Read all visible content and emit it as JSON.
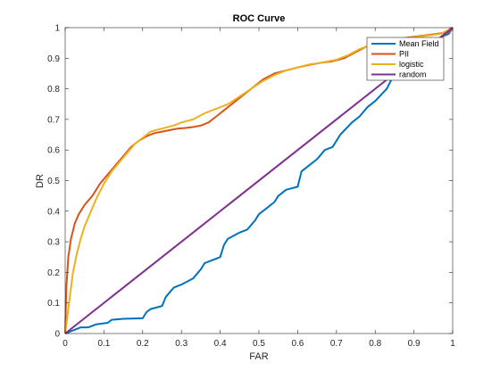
{
  "chart_data": {
    "type": "line",
    "title": "ROC Curve",
    "xlabel": "FAR",
    "ylabel": "DR",
    "xlim": [
      0,
      1
    ],
    "ylim": [
      0,
      1
    ],
    "xticks": [
      0,
      0.1,
      0.2,
      0.3,
      0.4,
      0.5,
      0.6,
      0.7,
      0.8,
      0.9,
      1
    ],
    "yticks": [
      0,
      0.1,
      0.2,
      0.3,
      0.4,
      0.5,
      0.6,
      0.7,
      0.8,
      0.9,
      1
    ],
    "xtick_labels": [
      "0",
      "0.1",
      "0.2",
      "0.3",
      "0.4",
      "0.5",
      "0.6",
      "0.7",
      "0.8",
      "0.9",
      "1"
    ],
    "ytick_labels": [
      "0",
      "0.1",
      "0.2",
      "0.3",
      "0.4",
      "0.5",
      "0.6",
      "0.7",
      "0.8",
      "0.9",
      "1"
    ],
    "grid": false,
    "legend_position": "top-right",
    "series": [
      {
        "name": "Mean Field",
        "color": "#0072BD",
        "x": [
          0,
          0.02,
          0.04,
          0.06,
          0.08,
          0.11,
          0.12,
          0.15,
          0.2,
          0.21,
          0.22,
          0.25,
          0.26,
          0.28,
          0.3,
          0.33,
          0.35,
          0.36,
          0.38,
          0.4,
          0.41,
          0.42,
          0.45,
          0.47,
          0.49,
          0.5,
          0.52,
          0.54,
          0.55,
          0.57,
          0.6,
          0.61,
          0.63,
          0.65,
          0.67,
          0.69,
          0.71,
          0.74,
          0.76,
          0.78,
          0.8,
          0.83,
          0.85,
          0.86,
          0.88,
          0.9,
          0.93,
          0.95,
          0.97,
          0.99,
          1
        ],
        "y": [
          0,
          0.01,
          0.02,
          0.02,
          0.03,
          0.035,
          0.045,
          0.048,
          0.05,
          0.07,
          0.08,
          0.09,
          0.12,
          0.15,
          0.16,
          0.18,
          0.21,
          0.23,
          0.24,
          0.25,
          0.29,
          0.31,
          0.33,
          0.34,
          0.37,
          0.39,
          0.41,
          0.43,
          0.45,
          0.47,
          0.48,
          0.53,
          0.55,
          0.57,
          0.6,
          0.61,
          0.65,
          0.69,
          0.71,
          0.74,
          0.76,
          0.8,
          0.85,
          0.86,
          0.88,
          0.91,
          0.93,
          0.95,
          0.97,
          0.98,
          1.0
        ]
      },
      {
        "name": "PII",
        "color": "#D95319",
        "x": [
          0,
          0.003,
          0.008,
          0.015,
          0.025,
          0.035,
          0.05,
          0.07,
          0.09,
          0.11,
          0.13,
          0.15,
          0.17,
          0.19,
          0.21,
          0.23,
          0.25,
          0.27,
          0.29,
          0.31,
          0.33,
          0.35,
          0.37,
          0.39,
          0.42,
          0.45,
          0.48,
          0.51,
          0.54,
          0.57,
          0.6,
          0.63,
          0.66,
          0.69,
          0.72,
          0.75,
          0.78,
          0.81,
          0.84,
          0.87,
          0.9,
          0.93,
          0.96,
          0.99,
          1
        ],
        "y": [
          0,
          0.15,
          0.25,
          0.31,
          0.36,
          0.39,
          0.42,
          0.45,
          0.49,
          0.52,
          0.55,
          0.58,
          0.61,
          0.63,
          0.645,
          0.655,
          0.66,
          0.665,
          0.67,
          0.672,
          0.675,
          0.68,
          0.69,
          0.71,
          0.74,
          0.77,
          0.8,
          0.83,
          0.85,
          0.86,
          0.87,
          0.878,
          0.885,
          0.89,
          0.9,
          0.92,
          0.94,
          0.95,
          0.96,
          0.965,
          0.97,
          0.975,
          0.98,
          0.985,
          1.0
        ]
      },
      {
        "name": "logistic",
        "color": "#EDB120",
        "x": [
          0,
          0.005,
          0.01,
          0.02,
          0.03,
          0.04,
          0.05,
          0.06,
          0.08,
          0.1,
          0.12,
          0.14,
          0.16,
          0.18,
          0.2,
          0.22,
          0.25,
          0.28,
          0.3,
          0.33,
          0.36,
          0.39,
          0.42,
          0.45,
          0.48,
          0.51,
          0.54,
          0.57,
          0.6,
          0.63,
          0.66,
          0.7,
          0.73,
          0.76,
          0.79,
          0.82,
          0.85,
          0.88,
          0.91,
          0.94,
          0.97,
          1
        ],
        "y": [
          0,
          0.05,
          0.1,
          0.2,
          0.26,
          0.31,
          0.35,
          0.38,
          0.44,
          0.49,
          0.53,
          0.56,
          0.59,
          0.62,
          0.64,
          0.66,
          0.67,
          0.68,
          0.69,
          0.7,
          0.72,
          0.735,
          0.75,
          0.775,
          0.8,
          0.825,
          0.845,
          0.86,
          0.87,
          0.88,
          0.885,
          0.895,
          0.91,
          0.93,
          0.945,
          0.955,
          0.96,
          0.965,
          0.97,
          0.975,
          0.98,
          1.0
        ]
      },
      {
        "name": "random",
        "color": "#7E2F8E",
        "x": [
          0,
          1
        ],
        "y": [
          0,
          1
        ]
      }
    ]
  }
}
